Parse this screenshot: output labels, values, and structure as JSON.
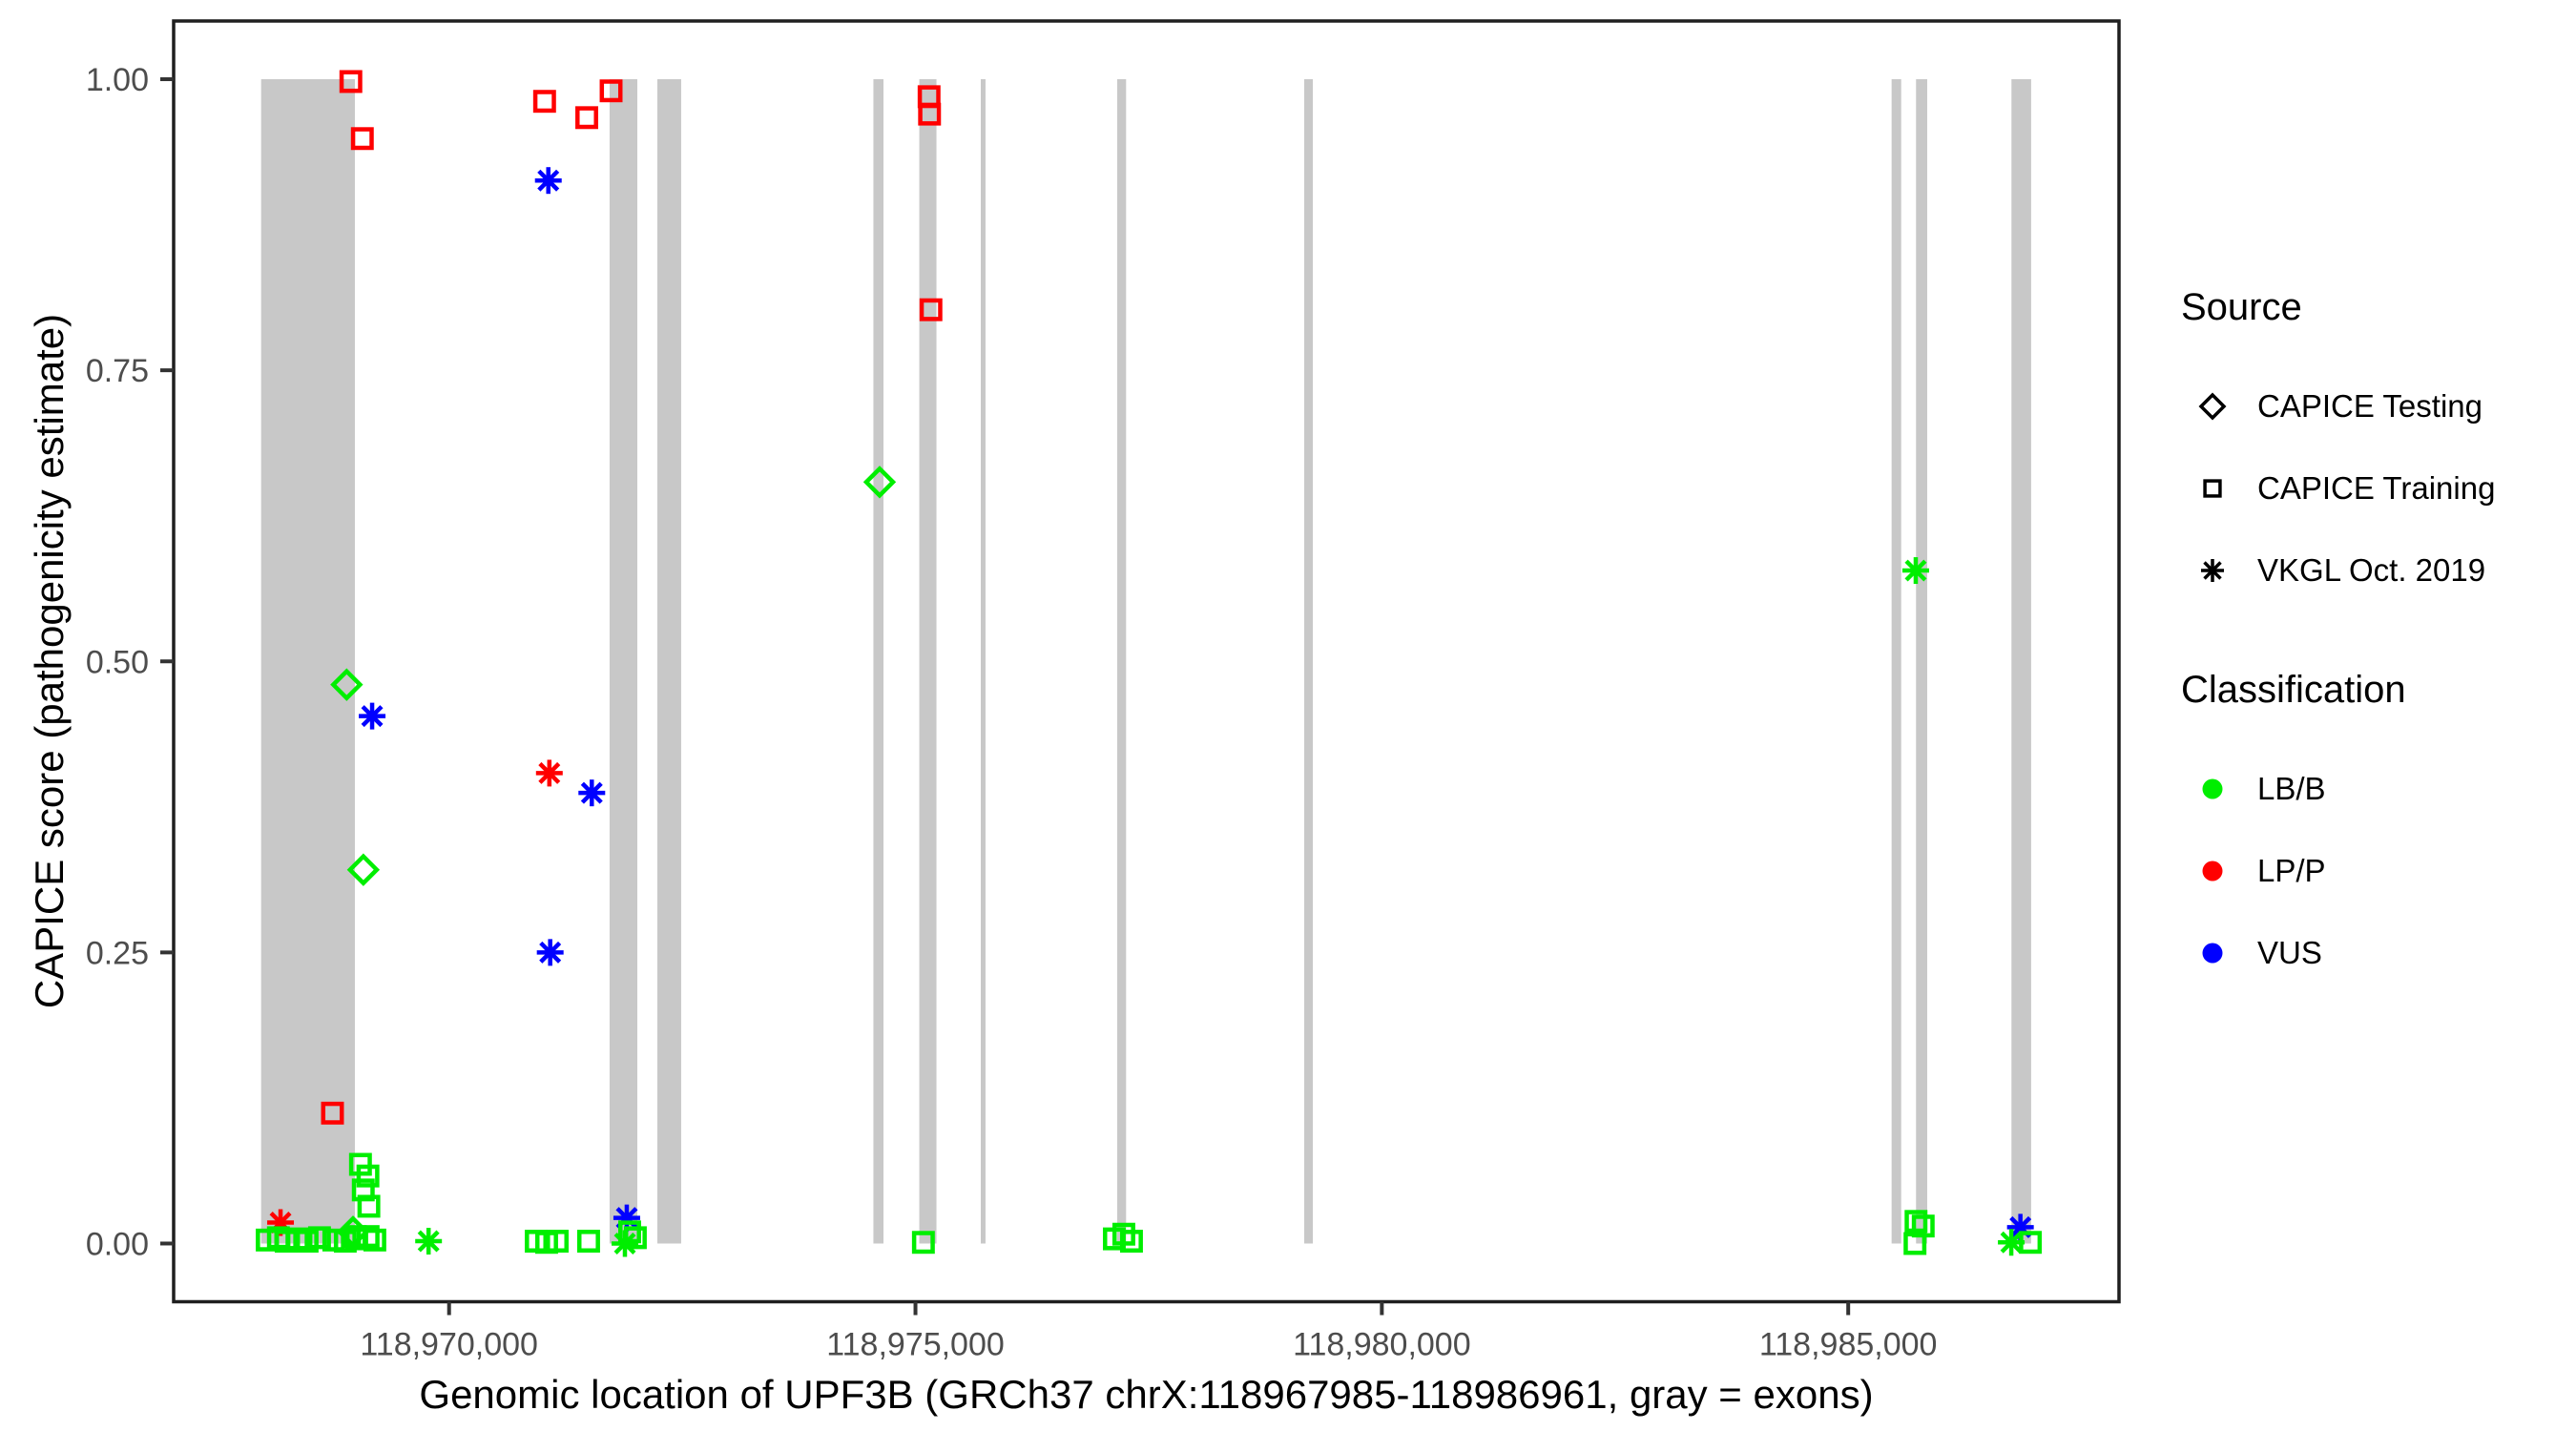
{
  "colors": {
    "exon": "#c8c8c8",
    "panel_border": "#1f1f1f",
    "tick": "#333333",
    "axis_text": "#4d4d4d",
    "axis_title": "#000000",
    "lbb_green": "#00ee00",
    "lpp_red": "#ff0000",
    "vus_blue": "#0000ff"
  },
  "legend": {
    "source": {
      "title": "Source",
      "items": [
        {
          "shape": "diamond",
          "label": "CAPICE Testing"
        },
        {
          "shape": "square",
          "label": "CAPICE Training"
        },
        {
          "shape": "asterisk",
          "label": "VKGL Oct. 2019"
        }
      ]
    },
    "classification": {
      "title": "Classification",
      "items": [
        {
          "color": "#00ee00",
          "label": "LB/B"
        },
        {
          "color": "#ff0000",
          "label": "LP/P"
        },
        {
          "color": "#0000ff",
          "label": "VUS"
        }
      ]
    }
  },
  "chart_data": {
    "type": "scatter",
    "title": "",
    "xlabel": "Genomic location of UPF3B (GRCh37 chrX:118967985-118986961, gray = exons)",
    "ylabel": "CAPICE score (pathogenicity estimate)",
    "x_domain": {
      "min": 118967047,
      "max": 118987903
    },
    "y_domain": {
      "min": -0.05,
      "max": 1.05
    },
    "x_ticks": [
      {
        "value": 118970000,
        "label": "118,970,000"
      },
      {
        "value": 118975000,
        "label": "118,975,000"
      },
      {
        "value": 118980000,
        "label": "118,980,000"
      },
      {
        "value": 118985000,
        "label": "118,985,000"
      }
    ],
    "y_ticks": [
      {
        "value": 0.0,
        "label": "0.00"
      },
      {
        "value": 0.25,
        "label": "0.25"
      },
      {
        "value": 0.5,
        "label": "0.50"
      },
      {
        "value": 0.75,
        "label": "0.75"
      },
      {
        "value": 1.0,
        "label": "1.00"
      }
    ],
    "grid": false,
    "legend_position": "right",
    "exon_score_span": [
      0,
      1
    ],
    "exons": [
      [
        118967985,
        118968990
      ],
      [
        118971721,
        118972018
      ],
      [
        118972233,
        118972488
      ],
      [
        118974549,
        118974657
      ],
      [
        118975041,
        118975225
      ],
      [
        118975700,
        118975751
      ],
      [
        118977163,
        118977258
      ],
      [
        118979168,
        118979260
      ],
      [
        118985465,
        118985568
      ],
      [
        118985727,
        118985847
      ],
      [
        118986750,
        118986961
      ]
    ],
    "shape_by_source": {
      "CAPICE Testing": "diamond",
      "CAPICE Training": "square",
      "VKGL Oct. 2019": "asterisk"
    },
    "color_by_classification": {
      "LB/B": "#00ee00",
      "LP/P": "#ff0000",
      "VUS": "#0000ff"
    },
    "points": [
      {
        "pos": 118974616,
        "score": 0.654,
        "source": "CAPICE Testing",
        "classification": "LB/B"
      },
      {
        "pos": 118968902,
        "score": 0.48,
        "source": "CAPICE Testing",
        "classification": "LB/B"
      },
      {
        "pos": 118969081,
        "score": 0.321,
        "source": "CAPICE Testing",
        "classification": "LB/B"
      },
      {
        "pos": 118968970,
        "score": 0.01,
        "source": "CAPICE Testing",
        "classification": "LB/B"
      },
      {
        "pos": 118968947,
        "score": 0.998,
        "source": "CAPICE Training",
        "classification": "LP/P"
      },
      {
        "pos": 118969070,
        "score": 0.949,
        "source": "CAPICE Training",
        "classification": "LP/P"
      },
      {
        "pos": 118971024,
        "score": 0.981,
        "source": "CAPICE Training",
        "classification": "LP/P"
      },
      {
        "pos": 118971476,
        "score": 0.967,
        "source": "CAPICE Training",
        "classification": "LP/P"
      },
      {
        "pos": 118971737,
        "score": 0.99,
        "source": "CAPICE Training",
        "classification": "LP/P"
      },
      {
        "pos": 118975146,
        "score": 0.985,
        "source": "CAPICE Training",
        "classification": "LP/P"
      },
      {
        "pos": 118975151,
        "score": 0.97,
        "source": "CAPICE Training",
        "classification": "LP/P"
      },
      {
        "pos": 118975166,
        "score": 0.802,
        "source": "CAPICE Training",
        "classification": "LP/P"
      },
      {
        "pos": 118968750,
        "score": 0.112,
        "source": "CAPICE Training",
        "classification": "LP/P"
      },
      {
        "pos": 118971075,
        "score": 0.404,
        "source": "VKGL Oct. 2019",
        "classification": "LP/P"
      },
      {
        "pos": 118968193,
        "score": 0.018,
        "source": "VKGL Oct. 2019",
        "classification": "LP/P"
      },
      {
        "pos": 118971064,
        "score": 0.913,
        "source": "VKGL Oct. 2019",
        "classification": "VUS"
      },
      {
        "pos": 118969175,
        "score": 0.453,
        "source": "VKGL Oct. 2019",
        "classification": "VUS"
      },
      {
        "pos": 118971530,
        "score": 0.387,
        "source": "VKGL Oct. 2019",
        "classification": "VUS"
      },
      {
        "pos": 118971084,
        "score": 0.25,
        "source": "VKGL Oct. 2019",
        "classification": "VUS"
      },
      {
        "pos": 118971905,
        "score": 0.022,
        "source": "VKGL Oct. 2019",
        "classification": "VUS"
      },
      {
        "pos": 118986846,
        "score": 0.014,
        "source": "VKGL Oct. 2019",
        "classification": "VUS"
      },
      {
        "pos": 118985724,
        "score": 0.578,
        "source": "VKGL Oct. 2019",
        "classification": "LB/B"
      },
      {
        "pos": 118969780,
        "score": 0.002,
        "source": "VKGL Oct. 2019",
        "classification": "LB/B"
      },
      {
        "pos": 118971885,
        "score": 0.0,
        "source": "VKGL Oct. 2019",
        "classification": "LB/B"
      },
      {
        "pos": 118986748,
        "score": 0.001,
        "source": "VKGL Oct. 2019",
        "classification": "LB/B"
      },
      {
        "pos": 118969050,
        "score": 0.068,
        "source": "CAPICE Training",
        "classification": "LB/B"
      },
      {
        "pos": 118969130,
        "score": 0.058,
        "source": "CAPICE Training",
        "classification": "LB/B"
      },
      {
        "pos": 118969080,
        "score": 0.046,
        "source": "CAPICE Training",
        "classification": "LB/B"
      },
      {
        "pos": 118969140,
        "score": 0.032,
        "source": "CAPICE Training",
        "classification": "LB/B"
      },
      {
        "pos": 118968050,
        "score": 0.003,
        "source": "CAPICE Training",
        "classification": "LB/B"
      },
      {
        "pos": 118968170,
        "score": 0.005,
        "source": "CAPICE Training",
        "classification": "LB/B"
      },
      {
        "pos": 118968253,
        "score": 0.002,
        "source": "CAPICE Training",
        "classification": "LB/B"
      },
      {
        "pos": 118968375,
        "score": 0.004,
        "source": "CAPICE Training",
        "classification": "LB/B"
      },
      {
        "pos": 118968478,
        "score": 0.002,
        "source": "CAPICE Training",
        "classification": "LB/B"
      },
      {
        "pos": 118968611,
        "score": 0.005,
        "source": "CAPICE Training",
        "classification": "LB/B"
      },
      {
        "pos": 118968764,
        "score": 0.003,
        "source": "CAPICE Training",
        "classification": "LB/B"
      },
      {
        "pos": 118968887,
        "score": 0.002,
        "source": "CAPICE Training",
        "classification": "LB/B"
      },
      {
        "pos": 118969010,
        "score": 0.004,
        "source": "CAPICE Training",
        "classification": "LB/B"
      },
      {
        "pos": 118969132,
        "score": 0.006,
        "source": "CAPICE Training",
        "classification": "LB/B"
      },
      {
        "pos": 118969204,
        "score": 0.003,
        "source": "CAPICE Training",
        "classification": "LB/B"
      },
      {
        "pos": 118968995,
        "score": 0.006,
        "source": "CAPICE Training",
        "classification": "LB/B"
      },
      {
        "pos": 118970934,
        "score": 0.002,
        "source": "CAPICE Training",
        "classification": "LB/B"
      },
      {
        "pos": 118971046,
        "score": 0.001,
        "source": "CAPICE Training",
        "classification": "LB/B"
      },
      {
        "pos": 118971159,
        "score": 0.002,
        "source": "CAPICE Training",
        "classification": "LB/B"
      },
      {
        "pos": 118971496,
        "score": 0.002,
        "source": "CAPICE Training",
        "classification": "LB/B"
      },
      {
        "pos": 118971936,
        "score": 0.01,
        "source": "CAPICE Training",
        "classification": "LB/B"
      },
      {
        "pos": 118971997,
        "score": 0.005,
        "source": "CAPICE Training",
        "classification": "LB/B"
      },
      {
        "pos": 118975085,
        "score": 0.001,
        "source": "CAPICE Training",
        "classification": "LB/B"
      },
      {
        "pos": 118977132,
        "score": 0.004,
        "source": "CAPICE Training",
        "classification": "LB/B"
      },
      {
        "pos": 118977234,
        "score": 0.008,
        "source": "CAPICE Training",
        "classification": "LB/B"
      },
      {
        "pos": 118977316,
        "score": 0.002,
        "source": "CAPICE Training",
        "classification": "LB/B"
      },
      {
        "pos": 118985727,
        "score": 0.019,
        "source": "CAPICE Training",
        "classification": "LB/B"
      },
      {
        "pos": 118985804,
        "score": 0.015,
        "source": "CAPICE Training",
        "classification": "LB/B"
      },
      {
        "pos": 118985716,
        "score": 0.0,
        "source": "CAPICE Training",
        "classification": "LB/B"
      },
      {
        "pos": 118986953,
        "score": 0.001,
        "source": "CAPICE Training",
        "classification": "LB/B"
      }
    ]
  }
}
